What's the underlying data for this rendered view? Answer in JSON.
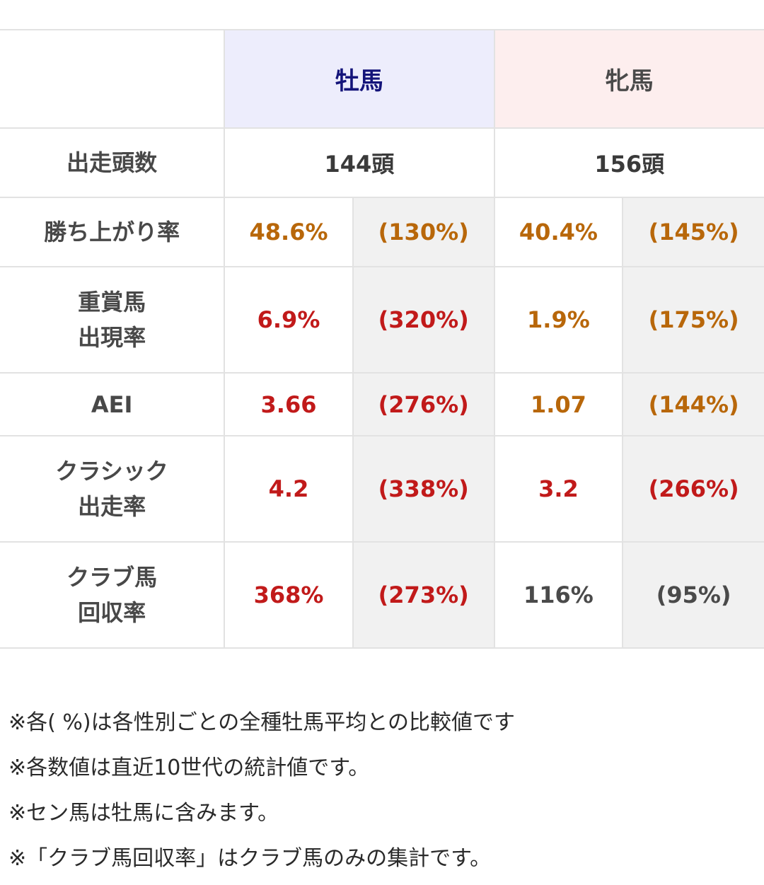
{
  "table": {
    "headers": {
      "male": "牡馬",
      "female": "牝馬"
    },
    "rows": [
      {
        "label": "出走頭数",
        "male_count": "144頭",
        "female_count": "156頭"
      },
      {
        "label": "勝ち上がり率",
        "male_value": "48.6%",
        "male_ratio": "(130%)",
        "female_value": "40.4%",
        "female_ratio": "(145%)",
        "colors": {
          "male_value": "orange",
          "male_ratio": "orange",
          "female_value": "orange",
          "female_ratio": "orange"
        }
      },
      {
        "label_line1": "重賞馬",
        "label_line2": "出現率",
        "male_value": "6.9%",
        "male_ratio": "(320%)",
        "female_value": "1.9%",
        "female_ratio": "(175%)",
        "colors": {
          "male_value": "red",
          "male_ratio": "red",
          "female_value": "orange",
          "female_ratio": "orange"
        }
      },
      {
        "label": "AEI",
        "male_value": "3.66",
        "male_ratio": "(276%)",
        "female_value": "1.07",
        "female_ratio": "(144%)",
        "colors": {
          "male_value": "red",
          "male_ratio": "red",
          "female_value": "orange",
          "female_ratio": "orange"
        }
      },
      {
        "label_line1": "クラシック",
        "label_line2": "出走率",
        "male_value": "4.2",
        "male_ratio": "(338%)",
        "female_value": "3.2",
        "female_ratio": "(266%)",
        "colors": {
          "male_value": "red",
          "male_ratio": "red",
          "female_value": "red",
          "female_ratio": "red"
        }
      },
      {
        "label_line1": "クラブ馬",
        "label_line2": "回収率",
        "male_value": "368%",
        "male_ratio": "(273%)",
        "female_value": "116%",
        "female_ratio": "(95%)",
        "colors": {
          "male_value": "red",
          "male_ratio": "red",
          "female_value": "gray",
          "female_ratio": "gray"
        }
      }
    ]
  },
  "colors": {
    "orange": "#b8670a",
    "red": "#c11a1a",
    "gray": "#4a4a4a",
    "male_header_bg": "#ededfc",
    "female_header_bg": "#fdeeee"
  },
  "notes": [
    "※各( %)は各性別ごとの全種牡馬平均との比較値です",
    "※各数値は直近10世代の統計値です。",
    "※セン馬は牡馬に含みます。",
    "※「クラブ馬回収率」はクラブ馬のみの集計です。"
  ]
}
